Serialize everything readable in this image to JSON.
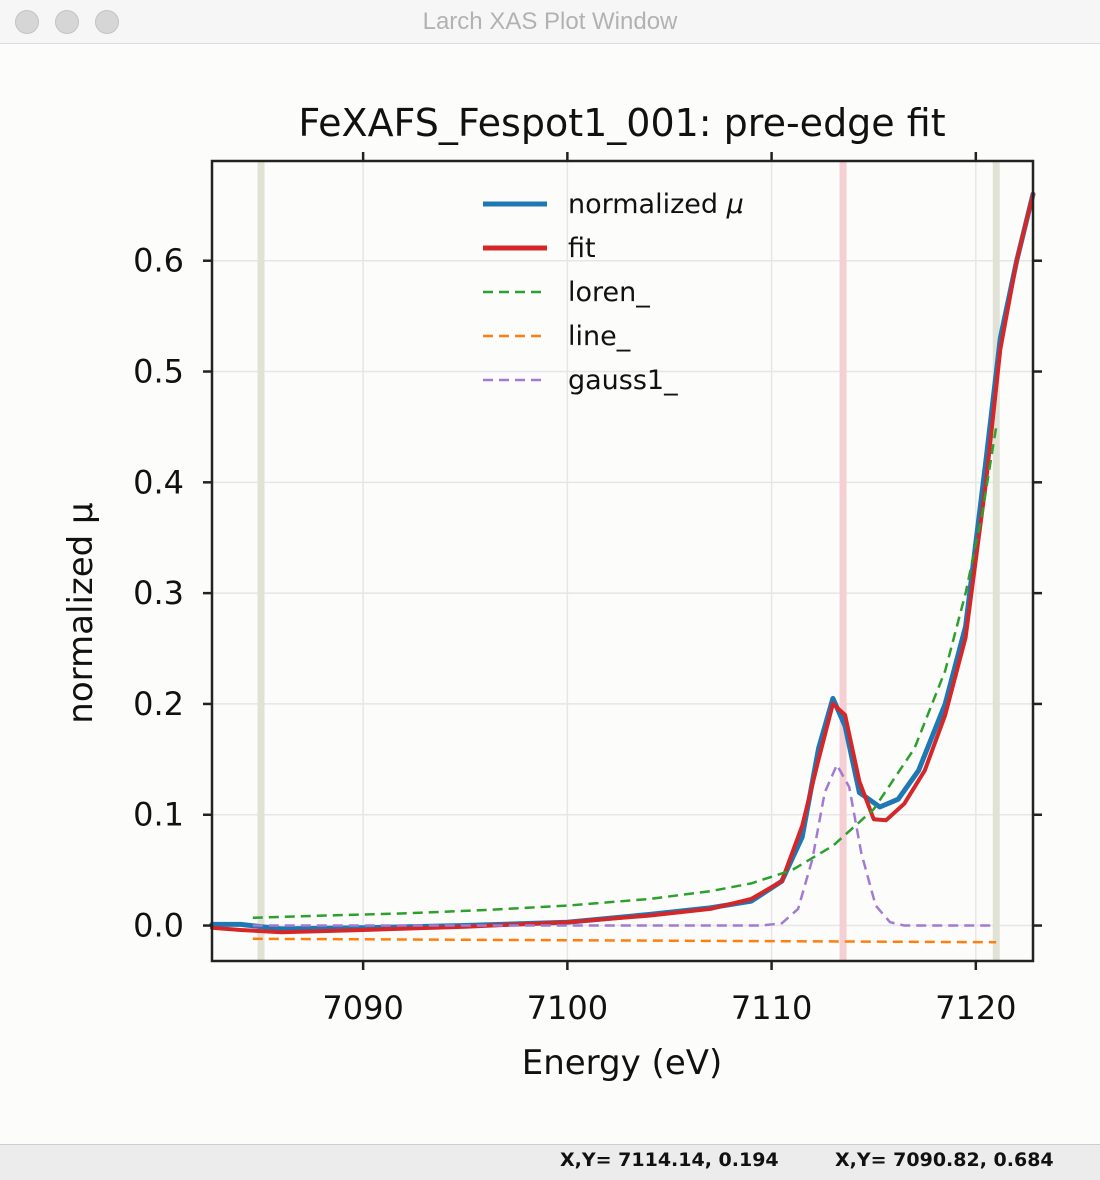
{
  "window": {
    "title": "Larch XAS Plot Window"
  },
  "status": {
    "field1": "X,Y= 7114.14, 0.194",
    "field2": "X,Y= 7090.82, 0.684"
  },
  "chart_data": {
    "type": "line",
    "title": "FeXAFS_Fespot1_001:  pre-edge fit",
    "xlabel": "Energy (eV)",
    "ylabel": "normalized μ",
    "xlim": [
      7082.6,
      7122.8
    ],
    "ylim": [
      -0.032,
      0.69
    ],
    "xticks": [
      7090,
      7100,
      7110,
      7120
    ],
    "yticks": [
      0.0,
      0.1,
      0.2,
      0.3,
      0.4,
      0.5,
      0.6
    ],
    "ytick_labels": [
      "0.0",
      "0.1",
      "0.2",
      "0.3",
      "0.4",
      "0.5",
      "0.6"
    ],
    "grid": true,
    "legend_position": "top-center",
    "vlines": [
      {
        "x": 7085.0,
        "color": "#e0e2d5"
      },
      {
        "x": 7113.5,
        "color": "#f5cfd1"
      },
      {
        "x": 7121.0,
        "color": "#e0e2d5"
      }
    ],
    "series": [
      {
        "name": "normalized μ",
        "legend_label": "normalized ",
        "legend_symbol": "μ",
        "color": "#1f77b4",
        "style": "solid",
        "width": 5,
        "x": [
          7082.6,
          7084,
          7086,
          7090,
          7095,
          7100,
          7104,
          7107,
          7109,
          7110.5,
          7111.5,
          7112.3,
          7113.0,
          7113.6,
          7114.3,
          7115.3,
          7116.2,
          7117.2,
          7118.5,
          7119.5,
          7120.5,
          7121.2,
          7122.0,
          7122.8
        ],
        "y": [
          0.001,
          0.001,
          -0.003,
          -0.002,
          0.0,
          0.003,
          0.01,
          0.016,
          0.022,
          0.04,
          0.08,
          0.16,
          0.205,
          0.18,
          0.12,
          0.107,
          0.114,
          0.14,
          0.2,
          0.27,
          0.42,
          0.53,
          0.6,
          0.66
        ]
      },
      {
        "name": "fit",
        "legend_label": "fit",
        "legend_symbol": "",
        "color": "#d62728",
        "style": "solid",
        "width": 4,
        "x": [
          7082.6,
          7084,
          7086,
          7090,
          7095,
          7100,
          7104,
          7107,
          7109,
          7110.5,
          7111.5,
          7112.3,
          7113.0,
          7113.6,
          7114.3,
          7115.0,
          7115.6,
          7116.5,
          7117.5,
          7118.5,
          7119.5,
          7120.5,
          7121.2,
          7122.0,
          7122.8
        ],
        "y": [
          -0.002,
          -0.004,
          -0.006,
          -0.004,
          -0.001,
          0.003,
          0.009,
          0.015,
          0.024,
          0.04,
          0.09,
          0.15,
          0.2,
          0.19,
          0.13,
          0.096,
          0.095,
          0.11,
          0.14,
          0.19,
          0.26,
          0.4,
          0.52,
          0.6,
          0.66
        ]
      },
      {
        "name": "loren_",
        "legend_label": "loren_",
        "legend_symbol": "",
        "color": "#2ca02c",
        "style": "dashed",
        "width": 2.5,
        "x": [
          7084.6,
          7088,
          7092,
          7096,
          7100,
          7104,
          7107,
          7109,
          7111,
          7113,
          7115,
          7117,
          7118.5,
          7119.5,
          7120.3,
          7121.0
        ],
        "y": [
          0.007,
          0.009,
          0.011,
          0.014,
          0.018,
          0.024,
          0.031,
          0.038,
          0.05,
          0.072,
          0.105,
          0.16,
          0.23,
          0.3,
          0.37,
          0.45
        ]
      },
      {
        "name": "line_",
        "legend_label": "line_",
        "legend_symbol": "",
        "color": "#ff7f0e",
        "style": "dashed",
        "width": 2.5,
        "x": [
          7084.6,
          7121.0
        ],
        "y": [
          -0.012,
          -0.015
        ]
      },
      {
        "name": "gauss1_",
        "legend_label": "gauss1_",
        "legend_symbol": "",
        "color": "#a17bcf",
        "style": "dashed",
        "width": 2.5,
        "x": [
          7084.6,
          7109.5,
          7110.5,
          7111.3,
          7112.0,
          7112.6,
          7113.2,
          7113.8,
          7114.4,
          7115.1,
          7115.8,
          7116.5,
          7121.0
        ],
        "y": [
          0.0,
          0.0,
          0.002,
          0.015,
          0.06,
          0.12,
          0.145,
          0.125,
          0.065,
          0.018,
          0.003,
          0.0,
          0.0
        ]
      }
    ]
  }
}
